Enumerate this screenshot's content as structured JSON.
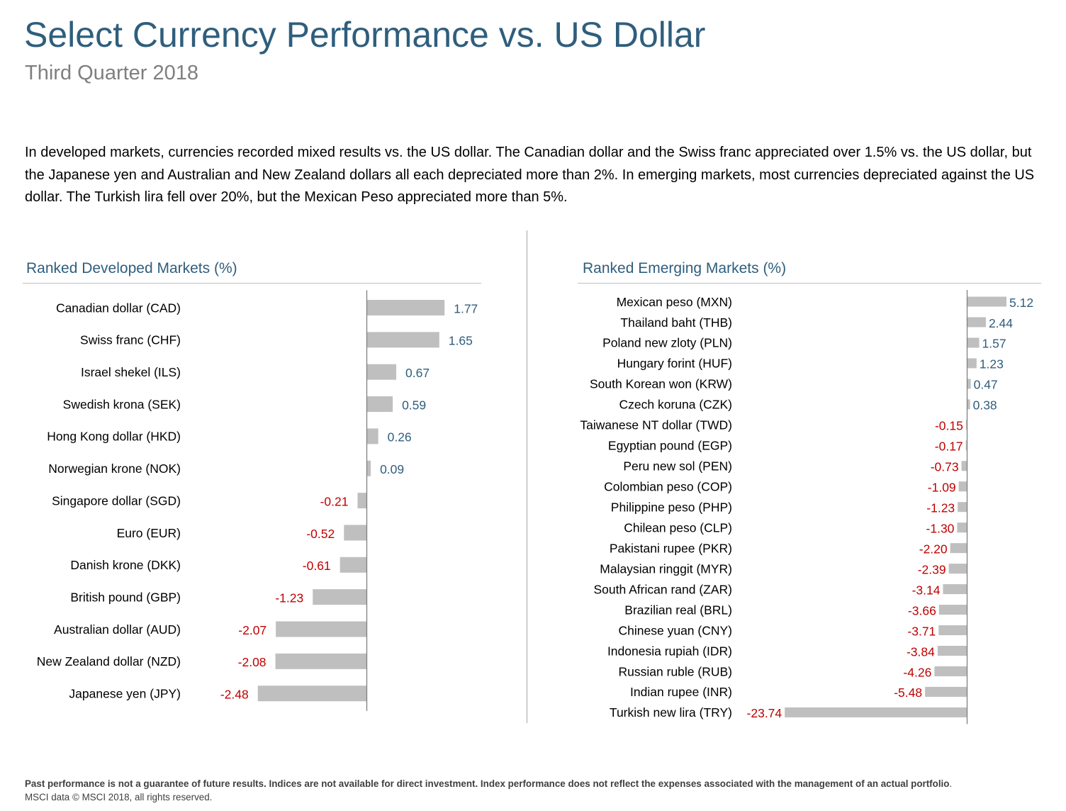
{
  "header": {
    "title": "Select Currency Performance vs. US Dollar",
    "subtitle": "Third Quarter 2018"
  },
  "intro_text": "In developed markets, currencies recorded mixed results vs. the US dollar. The Canadian dollar and the Swiss franc appreciated over 1.5% vs. the US dollar, but the Japanese yen and Australian and New Zealand dollars all each depreciated more than 2%. In emerging markets, most currencies depreciated against the US dollar. The Turkish lira fell over 20%, but the Mexican Peso appreciated more than 5%.",
  "colors": {
    "bar": "#bfbfbf",
    "positive_label": "#2f5e7d",
    "negative_label": "#c00000",
    "heading": "#2f5e7d"
  },
  "chart_data": [
    {
      "type": "bar",
      "orientation": "horizontal",
      "title": "Ranked Developed Markets (%)",
      "categories": [
        "Canadian dollar (CAD)",
        "Swiss franc (CHF)",
        "Israel shekel (ILS)",
        "Swedish krona (SEK)",
        "Hong Kong dollar (HKD)",
        "Norwegian krone (NOK)",
        "Singapore dollar (SGD)",
        "Euro (EUR)",
        "Danish krone (DKK)",
        "British pound (GBP)",
        "Australian dollar (AUD)",
        "New Zealand dollar (NZD)",
        "Japanese yen (JPY)"
      ],
      "values": [
        1.77,
        1.65,
        0.67,
        0.59,
        0.26,
        0.09,
        -0.21,
        -0.52,
        -0.61,
        -1.23,
        -2.07,
        -2.08,
        -2.48
      ],
      "data_labels": [
        "1.77",
        "1.65",
        "0.67",
        "0.59",
        "0.26",
        "0.09",
        "-0.21",
        "-0.52",
        "-0.61",
        "-1.23",
        "-2.07",
        "-2.08",
        "-2.48"
      ],
      "grid": false,
      "legend": "none"
    },
    {
      "type": "bar",
      "orientation": "horizontal",
      "title": "Ranked Emerging Markets (%)",
      "categories": [
        "Mexican peso (MXN)",
        "Thailand baht (THB)",
        "Poland new zloty (PLN)",
        "Hungary forint (HUF)",
        "South Korean won (KRW)",
        "Czech koruna (CZK)",
        "Taiwanese NT dollar (TWD)",
        "Egyptian pound (EGP)",
        "Peru new sol (PEN)",
        "Colombian peso (COP)",
        "Philippine peso (PHP)",
        "Chilean peso (CLP)",
        "Pakistani rupee (PKR)",
        "Malaysian ringgit (MYR)",
        "South African rand (ZAR)",
        "Brazilian real (BRL)",
        "Chinese yuan (CNY)",
        "Indonesia rupiah (IDR)",
        "Russian ruble (RUB)",
        "Indian rupee (INR)",
        "Turkish new lira (TRY)"
      ],
      "values": [
        5.12,
        2.44,
        1.57,
        1.23,
        0.47,
        0.38,
        -0.15,
        -0.17,
        -0.73,
        -1.09,
        -1.23,
        -1.3,
        -2.2,
        -2.39,
        -3.14,
        -3.66,
        -3.71,
        -3.84,
        -4.26,
        -5.48,
        -23.74
      ],
      "data_labels": [
        "5.12",
        "2.44",
        "1.57",
        "1.23",
        "0.47",
        "0.38",
        "-0.15",
        "-0.17",
        "-0.73",
        "-1.09",
        "-1.23",
        "-1.30",
        "-2.20",
        "-2.39",
        "-3.14",
        "-3.66",
        "-3.71",
        "-3.84",
        "-4.26",
        "-5.48",
        "-23.74"
      ],
      "grid": false,
      "legend": "none"
    }
  ],
  "footer": {
    "disclaimer": "Past performance is not a guarantee of future results. Indices are not available for direct investment. Index performance does not reflect the expenses associated with the management of an actual portfolio",
    "period": ".",
    "source": "MSCI data © MSCI 2018, all rights reserved."
  }
}
